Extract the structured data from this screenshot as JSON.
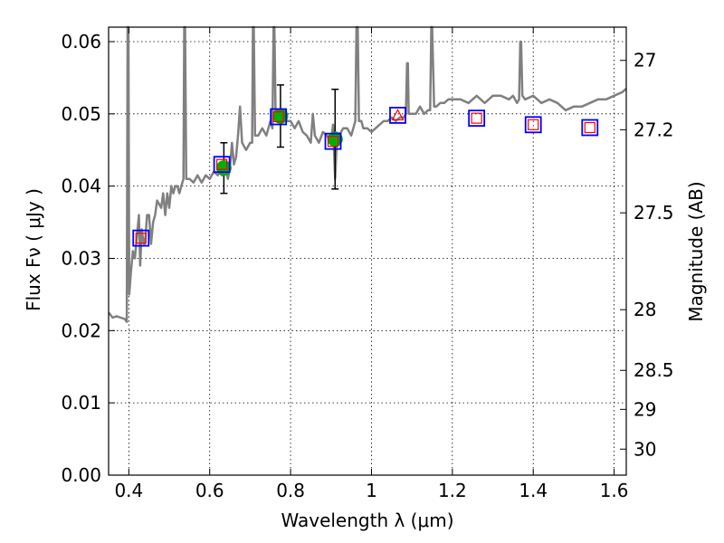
{
  "chart_data": {
    "type": "line",
    "xlabel": "Wavelength  λ (μm)",
    "ylabel_left": "Flux  Fν  ( μJy )",
    "ylabel_right": "Magnitude (AB)",
    "xlim": [
      0.35,
      1.63
    ],
    "ylim": [
      0.0,
      0.062
    ],
    "grid": true,
    "x_ticks": [
      0.4,
      0.6,
      0.8,
      1.0,
      1.2,
      1.4,
      1.6
    ],
    "x_tick_labels": [
      "0.4",
      "0.6",
      "0.8",
      "1",
      "1.2",
      "1.4",
      "1.6"
    ],
    "y_ticks": [
      0.0,
      0.01,
      0.02,
      0.03,
      0.04,
      0.05,
      0.06
    ],
    "y_tick_labels": [
      "0.00",
      "0.01",
      "0.02",
      "0.03",
      "0.04",
      "0.05",
      "0.06"
    ],
    "mag_ticks": [
      {
        "label": "27",
        "flux": 0.0574
      },
      {
        "label": "27.2",
        "flux": 0.0478
      },
      {
        "label": "27.5",
        "flux": 0.0363
      },
      {
        "label": "28",
        "flux": 0.0229
      },
      {
        "label": "28.5",
        "flux": 0.0145
      },
      {
        "label": "29",
        "flux": 0.0091
      },
      {
        "label": "30",
        "flux": 0.0036
      }
    ],
    "spectrum": [
      [
        0.35,
        0.0225
      ],
      [
        0.36,
        0.0218
      ],
      [
        0.37,
        0.022
      ],
      [
        0.38,
        0.0218
      ],
      [
        0.39,
        0.0216
      ],
      [
        0.395,
        0.0212
      ],
      [
        0.397,
        0.062
      ],
      [
        0.399,
        0.062
      ],
      [
        0.401,
        0.025
      ],
      [
        0.405,
        0.028
      ],
      [
        0.41,
        0.031
      ],
      [
        0.415,
        0.03
      ],
      [
        0.42,
        0.033
      ],
      [
        0.425,
        0.036
      ],
      [
        0.428,
        0.029
      ],
      [
        0.432,
        0.034
      ],
      [
        0.437,
        0.032
      ],
      [
        0.44,
        0.032
      ],
      [
        0.445,
        0.036
      ],
      [
        0.45,
        0.036
      ],
      [
        0.455,
        0.032
      ],
      [
        0.46,
        0.035
      ],
      [
        0.465,
        0.036
      ],
      [
        0.47,
        0.038
      ],
      [
        0.48,
        0.037
      ],
      [
        0.485,
        0.039
      ],
      [
        0.49,
        0.036
      ],
      [
        0.495,
        0.039
      ],
      [
        0.5,
        0.037
      ],
      [
        0.505,
        0.04
      ],
      [
        0.51,
        0.039
      ],
      [
        0.515,
        0.04
      ],
      [
        0.52,
        0.04
      ],
      [
        0.525,
        0.039
      ],
      [
        0.53,
        0.04
      ],
      [
        0.535,
        0.041
      ],
      [
        0.537,
        0.062
      ],
      [
        0.539,
        0.062
      ],
      [
        0.542,
        0.041
      ],
      [
        0.55,
        0.041
      ],
      [
        0.56,
        0.0405
      ],
      [
        0.57,
        0.0415
      ],
      [
        0.58,
        0.0405
      ],
      [
        0.59,
        0.0415
      ],
      [
        0.6,
        0.041
      ],
      [
        0.61,
        0.042
      ],
      [
        0.62,
        0.0415
      ],
      [
        0.625,
        0.042
      ],
      [
        0.63,
        0.0415
      ],
      [
        0.64,
        0.0425
      ],
      [
        0.645,
        0.041
      ],
      [
        0.65,
        0.0425
      ],
      [
        0.655,
        0.046
      ],
      [
        0.66,
        0.043
      ],
      [
        0.665,
        0.044
      ],
      [
        0.67,
        0.047
      ],
      [
        0.675,
        0.051
      ],
      [
        0.68,
        0.046
      ],
      [
        0.69,
        0.045
      ],
      [
        0.7,
        0.046
      ],
      [
        0.705,
        0.046
      ],
      [
        0.707,
        0.062
      ],
      [
        0.709,
        0.062
      ],
      [
        0.712,
        0.047
      ],
      [
        0.72,
        0.047
      ],
      [
        0.73,
        0.048
      ],
      [
        0.74,
        0.047
      ],
      [
        0.75,
        0.049
      ],
      [
        0.755,
        0.048
      ],
      [
        0.758,
        0.062
      ],
      [
        0.76,
        0.062
      ],
      [
        0.763,
        0.049
      ],
      [
        0.77,
        0.0495
      ],
      [
        0.775,
        0.049
      ],
      [
        0.78,
        0.05
      ],
      [
        0.79,
        0.049
      ],
      [
        0.8,
        0.049
      ],
      [
        0.81,
        0.048
      ],
      [
        0.82,
        0.049
      ],
      [
        0.83,
        0.0475
      ],
      [
        0.84,
        0.047
      ],
      [
        0.85,
        0.046
      ],
      [
        0.855,
        0.05
      ],
      [
        0.86,
        0.047
      ],
      [
        0.87,
        0.046
      ],
      [
        0.88,
        0.0475
      ],
      [
        0.89,
        0.047
      ],
      [
        0.9,
        0.046
      ],
      [
        0.905,
        0.0485
      ],
      [
        0.91,
        0.041
      ],
      [
        0.915,
        0.047
      ],
      [
        0.92,
        0.047
      ],
      [
        0.93,
        0.048
      ],
      [
        0.94,
        0.048
      ],
      [
        0.95,
        0.047
      ],
      [
        0.955,
        0.048
      ],
      [
        0.96,
        0.049
      ],
      [
        0.963,
        0.062
      ],
      [
        0.966,
        0.062
      ],
      [
        0.969,
        0.049
      ],
      [
        0.975,
        0.049
      ],
      [
        0.98,
        0.048
      ],
      [
        0.99,
        0.048
      ],
      [
        1.0,
        0.0475
      ],
      [
        1.01,
        0.048
      ],
      [
        1.02,
        0.0485
      ],
      [
        1.03,
        0.049
      ],
      [
        1.04,
        0.049
      ],
      [
        1.05,
        0.0495
      ],
      [
        1.06,
        0.049
      ],
      [
        1.07,
        0.0495
      ],
      [
        1.08,
        0.0495
      ],
      [
        1.085,
        0.05
      ],
      [
        1.088,
        0.057
      ],
      [
        1.09,
        0.057
      ],
      [
        1.092,
        0.05
      ],
      [
        1.1,
        0.05
      ],
      [
        1.11,
        0.05
      ],
      [
        1.12,
        0.051
      ],
      [
        1.13,
        0.05
      ],
      [
        1.14,
        0.0505
      ],
      [
        1.145,
        0.0505
      ],
      [
        1.148,
        0.062
      ],
      [
        1.15,
        0.062
      ],
      [
        1.155,
        0.051
      ],
      [
        1.16,
        0.051
      ],
      [
        1.17,
        0.0515
      ],
      [
        1.18,
        0.0515
      ],
      [
        1.19,
        0.052
      ],
      [
        1.2,
        0.052
      ],
      [
        1.22,
        0.052
      ],
      [
        1.24,
        0.0515
      ],
      [
        1.26,
        0.0525
      ],
      [
        1.28,
        0.0515
      ],
      [
        1.29,
        0.052
      ],
      [
        1.3,
        0.0525
      ],
      [
        1.32,
        0.0525
      ],
      [
        1.34,
        0.052
      ],
      [
        1.35,
        0.0525
      ],
      [
        1.36,
        0.0515
      ],
      [
        1.365,
        0.052
      ],
      [
        1.368,
        0.06
      ],
      [
        1.37,
        0.06
      ],
      [
        1.373,
        0.0525
      ],
      [
        1.38,
        0.052
      ],
      [
        1.4,
        0.0525
      ],
      [
        1.42,
        0.0515
      ],
      [
        1.44,
        0.052
      ],
      [
        1.46,
        0.0515
      ],
      [
        1.48,
        0.0505
      ],
      [
        1.5,
        0.051
      ],
      [
        1.52,
        0.051
      ],
      [
        1.54,
        0.0515
      ],
      [
        1.56,
        0.052
      ],
      [
        1.58,
        0.052
      ],
      [
        1.6,
        0.0525
      ],
      [
        1.62,
        0.053
      ],
      [
        1.63,
        0.0535
      ]
    ],
    "model_points": [
      {
        "x": 0.43,
        "y": 0.0328,
        "marker": "square"
      },
      {
        "x": 0.63,
        "y": 0.043,
        "marker": "square"
      },
      {
        "x": 0.77,
        "y": 0.0496,
        "marker": "square"
      },
      {
        "x": 0.905,
        "y": 0.0462,
        "marker": "square"
      },
      {
        "x": 1.065,
        "y": 0.0498,
        "marker": "triangle"
      },
      {
        "x": 1.26,
        "y": 0.0494,
        "marker": "square"
      },
      {
        "x": 1.4,
        "y": 0.0485,
        "marker": "square"
      },
      {
        "x": 1.54,
        "y": 0.0481,
        "marker": "square"
      }
    ],
    "observed": [
      {
        "x": 0.635,
        "y": 0.0425,
        "err": 0.0035
      },
      {
        "x": 0.775,
        "y": 0.0497,
        "err": 0.0043
      },
      {
        "x": 0.91,
        "y": 0.0465,
        "err": 0.0069
      }
    ],
    "colors": {
      "spectrum": "#808080",
      "model_edge_outer": "#0000ff",
      "model_edge_inner": "#ff0000",
      "observed_fill": "#00b000",
      "errorbar": "#000000"
    }
  }
}
